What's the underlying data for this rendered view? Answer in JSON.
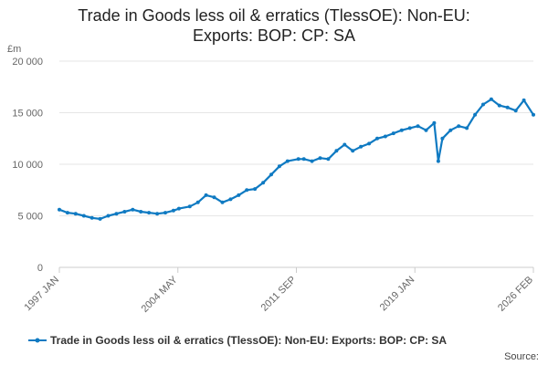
{
  "chart_data": {
    "type": "line",
    "title_lines": [
      "Trade in Goods less oil & erratics (TlessOE): Non-EU:",
      "Exports: BOP: CP: SA"
    ],
    "ylabel": "£m",
    "xlabel": "",
    "ylim": [
      0,
      20000
    ],
    "y_ticks": [
      0,
      5000,
      10000,
      15000,
      20000
    ],
    "y_tick_labels": [
      "0",
      "5 000",
      "10 000",
      "15 000",
      "20 000"
    ],
    "x_tick_labels": [
      "1997 JAN",
      "2004 MAY",
      "2011 SEP",
      "2019 JAN",
      "2026 FEB"
    ],
    "grid": true,
    "legend_position": "bottom",
    "source_label": "Source:",
    "series": [
      {
        "name": "Trade in Goods less oil & erratics (TlessOE): Non-EU: Exports: BOP: CP: SA",
        "color": "#0f7ac2",
        "x": [
          "1997-01",
          "1997-07",
          "1998-01",
          "1998-07",
          "1999-01",
          "1999-07",
          "2000-01",
          "2000-07",
          "2001-01",
          "2001-07",
          "2002-01",
          "2002-07",
          "2003-01",
          "2003-07",
          "2004-01",
          "2004-05",
          "2005-01",
          "2005-07",
          "2006-01",
          "2006-07",
          "2007-01",
          "2007-07",
          "2008-01",
          "2008-07",
          "2009-01",
          "2009-07",
          "2010-01",
          "2010-07",
          "2011-01",
          "2011-09",
          "2012-01",
          "2012-07",
          "2013-01",
          "2013-07",
          "2014-01",
          "2014-07",
          "2015-01",
          "2015-07",
          "2016-01",
          "2016-07",
          "2017-01",
          "2017-07",
          "2018-01",
          "2018-07",
          "2019-01",
          "2019-07",
          "2020-01",
          "2020-04",
          "2020-07",
          "2021-01",
          "2021-07",
          "2022-01",
          "2022-07",
          "2023-01",
          "2023-07",
          "2024-01",
          "2024-07",
          "2025-01",
          "2025-07",
          "2026-02"
        ],
        "values": [
          5600,
          5300,
          5200,
          5000,
          4800,
          4700,
          5000,
          5200,
          5400,
          5600,
          5400,
          5300,
          5200,
          5300,
          5500,
          5700,
          5900,
          6300,
          7000,
          6800,
          6300,
          6600,
          7000,
          7500,
          7600,
          8200,
          9000,
          9800,
          10300,
          10500,
          10500,
          10300,
          10600,
          10500,
          11300,
          11900,
          11300,
          11700,
          12000,
          12500,
          12700,
          13000,
          13300,
          13500,
          13700,
          13300,
          14000,
          10300,
          12500,
          13300,
          13700,
          13500,
          14800,
          15800,
          16300,
          15700,
          15500,
          15200,
          16200,
          14800
        ]
      }
    ]
  }
}
